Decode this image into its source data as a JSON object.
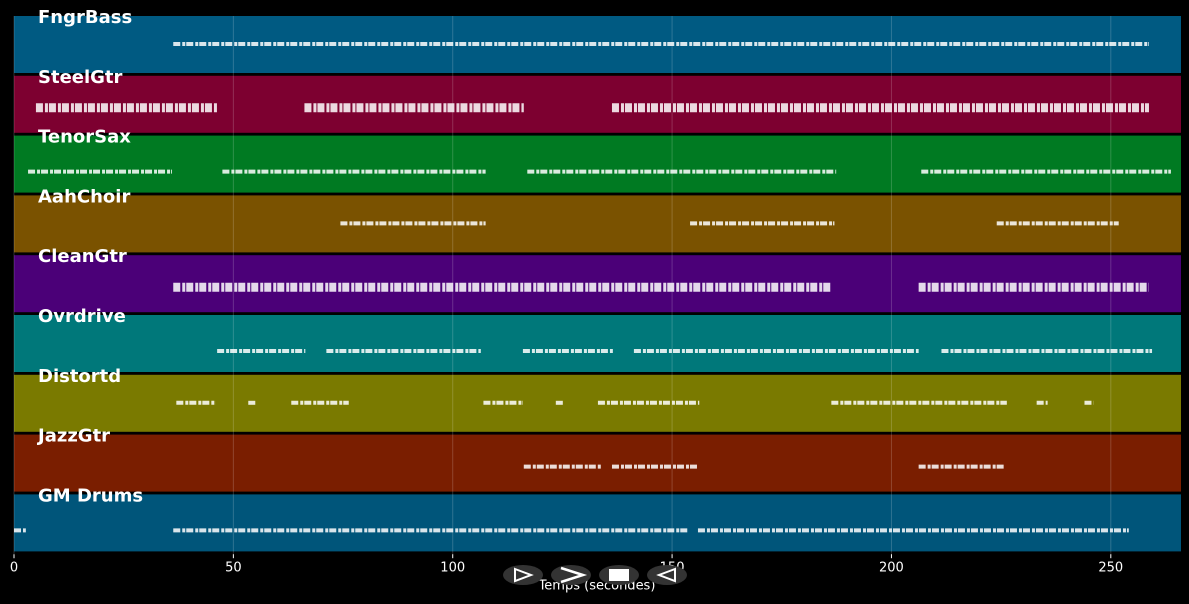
{
  "chart_data": {
    "type": "piano-roll",
    "xlabel": "Temps (secondes)",
    "xlim": [
      0,
      266
    ],
    "xticks": [
      0,
      50,
      100,
      150,
      200,
      250
    ],
    "grid": true,
    "series": [
      {
        "name": "FngrBass",
        "color": "#005a82",
        "values": [
          [
            36.3,
            258.7
          ]
        ]
      },
      {
        "name": "SteelGtr",
        "color": "#7d0030",
        "values": [
          [
            5,
            46.3
          ],
          [
            66.2,
            116.2
          ],
          [
            136.3,
            258.7
          ]
        ]
      },
      {
        "name": "TenorSax",
        "color": "#007a22",
        "values": [
          [
            3.2,
            36
          ],
          [
            47.5,
            107.5
          ],
          [
            117,
            187.4
          ],
          [
            206.8,
            263.7
          ]
        ]
      },
      {
        "name": "AahChoir",
        "color": "#7a5200",
        "values": [
          [
            74.4,
            107.5
          ],
          [
            154.1,
            187
          ],
          [
            224,
            251.8
          ]
        ]
      },
      {
        "name": "CleanGtr",
        "color": "#4b0078",
        "values": [
          [
            36.3,
            186.3
          ],
          [
            206.2,
            258.7
          ]
        ]
      },
      {
        "name": "Ovrdrive",
        "color": "#00787a",
        "values": [
          [
            46.3,
            66.4
          ],
          [
            71.2,
            106.4
          ],
          [
            116,
            136.5
          ],
          [
            141.3,
            206.2
          ],
          [
            211.4,
            259.4
          ]
        ]
      },
      {
        "name": "Distortd",
        "color": "#7a7a00",
        "values": [
          [
            37,
            45.9
          ],
          [
            53.4,
            55
          ],
          [
            63.2,
            76.3
          ],
          [
            107,
            116
          ],
          [
            123.5,
            125.1
          ],
          [
            133.1,
            156.2
          ],
          [
            186.3,
            226.3
          ],
          [
            233.1,
            235.6
          ],
          [
            244,
            246.1
          ]
        ]
      },
      {
        "name": "JazzGtr",
        "color": "#7a1e00",
        "values": [
          [
            116.2,
            133.8
          ],
          [
            136.3,
            155.9
          ],
          [
            206.2,
            226
          ]
        ]
      },
      {
        "name": "GM Drums",
        "color": "#00557a",
        "values": [
          [
            0,
            2.7
          ],
          [
            36.3,
            153.7
          ],
          [
            155.9,
            254.1
          ]
        ]
      }
    ]
  }
}
